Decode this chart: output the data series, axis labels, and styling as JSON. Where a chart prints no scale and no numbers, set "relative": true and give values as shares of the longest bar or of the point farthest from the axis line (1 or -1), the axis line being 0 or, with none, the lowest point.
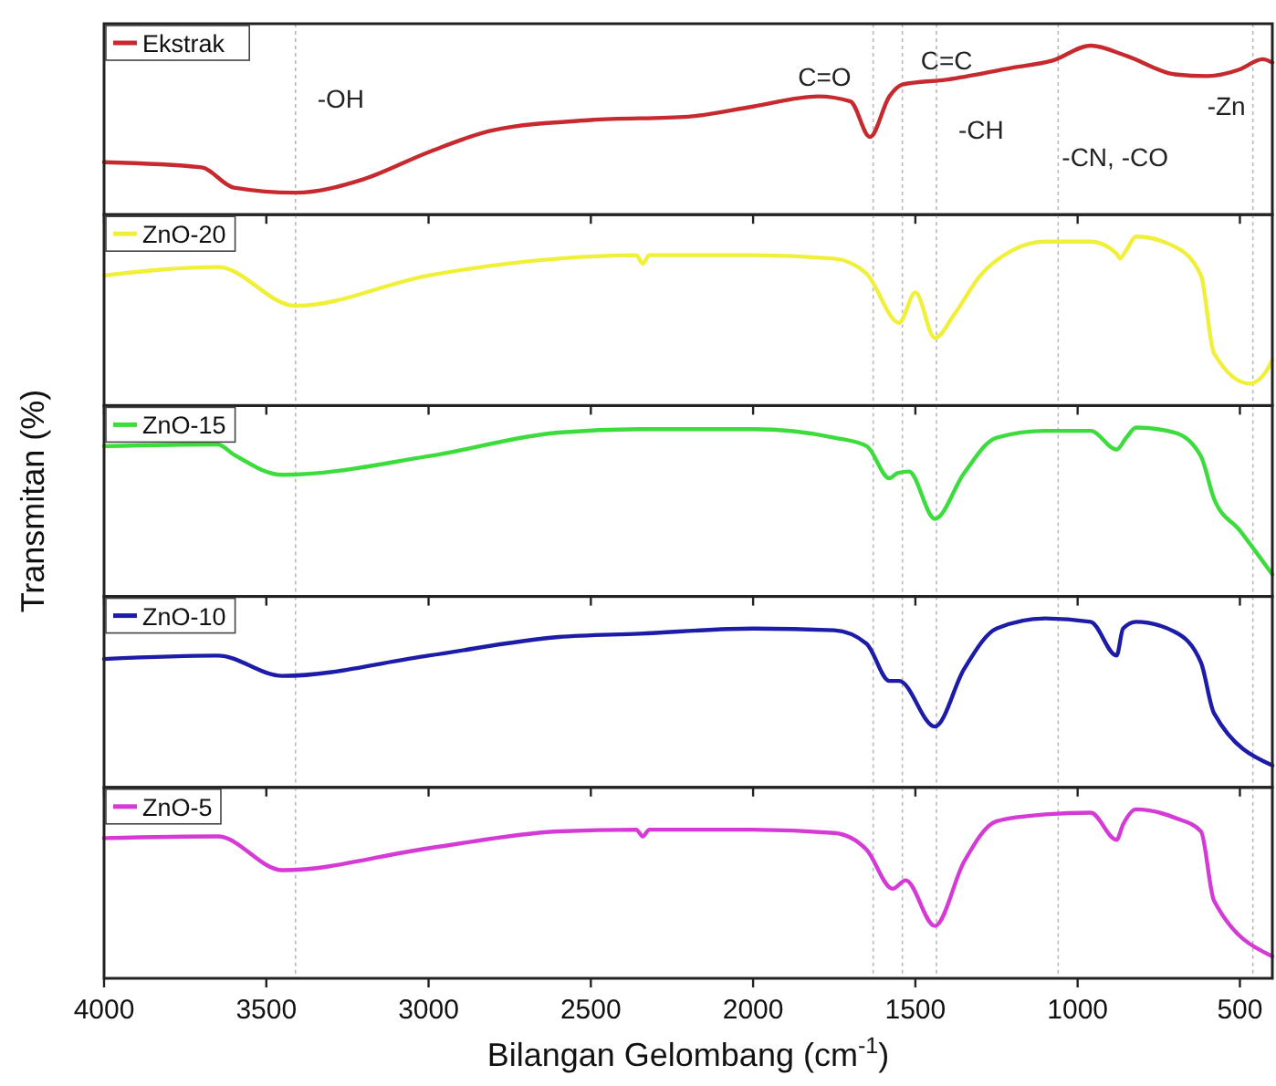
{
  "chart_data": [
    {
      "type": "line",
      "relative": true,
      "legend": "top left",
      "tick_labels": false,
      "xlim": [
        4000,
        400
      ],
      "xticks": [
        4000,
        3500,
        3000,
        2500,
        2000,
        1500,
        1000,
        500
      ],
      "series": [
        {
          "name": "Ekstrak",
          "color": "#c62a2f",
          "x": [
            4000,
            3700,
            3600,
            3410,
            3200,
            3000,
            2800,
            2500,
            2200,
            2000,
            1800,
            1700,
            1640,
            1580,
            1540,
            1400,
            1200,
            1080,
            960,
            850,
            700,
            600,
            500,
            430,
            400
          ],
          "values": [
            0.31,
            0.28,
            0.16,
            0.13,
            0.21,
            0.37,
            0.5,
            0.56,
            0.58,
            0.64,
            0.7,
            0.67,
            0.46,
            0.7,
            0.77,
            0.8,
            0.87,
            0.91,
            1,
            0.94,
            0.83,
            0.82,
            0.86,
            0.92,
            0.9
          ]
        }
      ],
      "ref_lines": [
        {
          "axis": "x",
          "value": 3410,
          "label": "-OH"
        },
        {
          "axis": "x",
          "value": 1630,
          "label": "C=O"
        },
        {
          "axis": "x",
          "value": 1540,
          "label": "C=C"
        },
        {
          "axis": "x",
          "value": 1435,
          "label": "-CH"
        },
        {
          "axis": "x",
          "value": 1060,
          "label": "-CN, -CO"
        },
        {
          "axis": "x",
          "value": 460,
          "label": "-Zn"
        }
      ]
    },
    {
      "type": "line",
      "relative": true,
      "legend": "top left",
      "tick_labels": false,
      "xlim": [
        4000,
        400
      ],
      "xticks": [
        4000,
        3500,
        3000,
        2500,
        2000,
        1500,
        1000,
        500
      ],
      "series": [
        {
          "name": "ZnO-20",
          "color": "#f0f03a",
          "x": [
            4000,
            3650,
            3410,
            3000,
            2600,
            2360,
            2340,
            2320,
            2000,
            1750,
            1650,
            1550,
            1500,
            1440,
            1380,
            1300,
            1200,
            1100,
            960,
            880,
            870,
            850,
            820,
            700,
            620,
            580,
            470,
            420,
            400
          ],
          "values": [
            0.77,
            0.82,
            0.59,
            0.77,
            0.87,
            0.89,
            0.84,
            0.89,
            0.89,
            0.87,
            0.78,
            0.49,
            0.67,
            0.4,
            0.54,
            0.77,
            0.92,
            0.97,
            0.97,
            0.9,
            0.87,
            0.92,
            1,
            0.94,
            0.77,
            0.31,
            0.13,
            0.2,
            0.27
          ]
        }
      ],
      "ref_lines": [
        {
          "axis": "x",
          "value": 3410
        },
        {
          "axis": "x",
          "value": 1630
        },
        {
          "axis": "x",
          "value": 1540
        },
        {
          "axis": "x",
          "value": 1435
        },
        {
          "axis": "x",
          "value": 1060
        },
        {
          "axis": "x",
          "value": 460
        }
      ]
    },
    {
      "type": "line",
      "relative": true,
      "legend": "top left",
      "tick_labels": false,
      "ylabel": "Transmitan (%)",
      "xlim": [
        4000,
        400
      ],
      "xticks": [
        4000,
        3500,
        3000,
        2500,
        2000,
        1500,
        1000,
        500
      ],
      "series": [
        {
          "name": "ZnO-15",
          "color": "#3cdc3c",
          "x": [
            4000,
            3650,
            3600,
            3450,
            3000,
            2600,
            2350,
            2000,
            1750,
            1650,
            1580,
            1555,
            1520,
            1440,
            1350,
            1250,
            1100,
            960,
            880,
            850,
            820,
            700,
            620,
            580,
            500,
            400
          ],
          "values": [
            0.89,
            0.9,
            0.84,
            0.72,
            0.83,
            0.97,
            0.99,
            0.99,
            0.94,
            0.89,
            0.7,
            0.73,
            0.74,
            0.46,
            0.73,
            0.94,
            0.98,
            0.98,
            0.87,
            0.94,
            1,
            0.97,
            0.83,
            0.58,
            0.39,
            0.13
          ]
        }
      ],
      "ref_lines": [
        {
          "axis": "x",
          "value": 3410
        },
        {
          "axis": "x",
          "value": 1630
        },
        {
          "axis": "x",
          "value": 1540
        },
        {
          "axis": "x",
          "value": 1435
        },
        {
          "axis": "x",
          "value": 1060
        },
        {
          "axis": "x",
          "value": 460
        }
      ]
    },
    {
      "type": "line",
      "relative": true,
      "legend": "top left",
      "tick_labels": false,
      "xlim": [
        4000,
        400
      ],
      "xticks": [
        4000,
        3500,
        3000,
        2500,
        2000,
        1500,
        1000,
        500
      ],
      "series": [
        {
          "name": "ZnO-10",
          "color": "#1c1ca8",
          "x": [
            4000,
            3650,
            3450,
            3000,
            2600,
            2350,
            2000,
            1750,
            1650,
            1580,
            1550,
            1440,
            1350,
            1250,
            1100,
            960,
            880,
            860,
            820,
            700,
            620,
            580,
            400
          ],
          "values": [
            0.76,
            0.78,
            0.66,
            0.78,
            0.89,
            0.91,
            0.94,
            0.93,
            0.85,
            0.63,
            0.63,
            0.36,
            0.7,
            0.94,
            1,
            0.98,
            0.78,
            0.94,
            0.98,
            0.92,
            0.74,
            0.44,
            0.13
          ]
        }
      ],
      "ref_lines": [
        {
          "axis": "x",
          "value": 3410
        },
        {
          "axis": "x",
          "value": 1630
        },
        {
          "axis": "x",
          "value": 1540
        },
        {
          "axis": "x",
          "value": 1435
        },
        {
          "axis": "x",
          "value": 1060
        },
        {
          "axis": "x",
          "value": 460
        }
      ]
    },
    {
      "type": "line",
      "relative": true,
      "legend": "top left",
      "tick_labels": "x",
      "xlabel": "Bilangan Gelombang (cm$^{-1}$)",
      "xlim": [
        4000,
        400
      ],
      "xticks": [
        4000,
        3500,
        3000,
        2500,
        2000,
        1500,
        1000,
        500
      ],
      "series": [
        {
          "name": "ZnO-5",
          "color": "#d63ad6",
          "x": [
            4000,
            3650,
            3450,
            3000,
            2600,
            2360,
            2340,
            2320,
            2000,
            1750,
            1650,
            1570,
            1530,
            1440,
            1350,
            1250,
            1100,
            960,
            880,
            860,
            820,
            700,
            620,
            580,
            400
          ],
          "values": [
            0.83,
            0.84,
            0.64,
            0.77,
            0.87,
            0.88,
            0.84,
            0.88,
            0.88,
            0.86,
            0.76,
            0.53,
            0.58,
            0.31,
            0.69,
            0.93,
            0.97,
            0.98,
            0.82,
            0.91,
            1,
            0.95,
            0.87,
            0.46,
            0.13
          ]
        }
      ],
      "ref_lines": [
        {
          "axis": "x",
          "value": 3410
        },
        {
          "axis": "x",
          "value": 1630
        },
        {
          "axis": "x",
          "value": 1540
        },
        {
          "axis": "x",
          "value": 1435
        },
        {
          "axis": "x",
          "value": 1060
        },
        {
          "axis": "x",
          "value": 460
        }
      ]
    }
  ]
}
